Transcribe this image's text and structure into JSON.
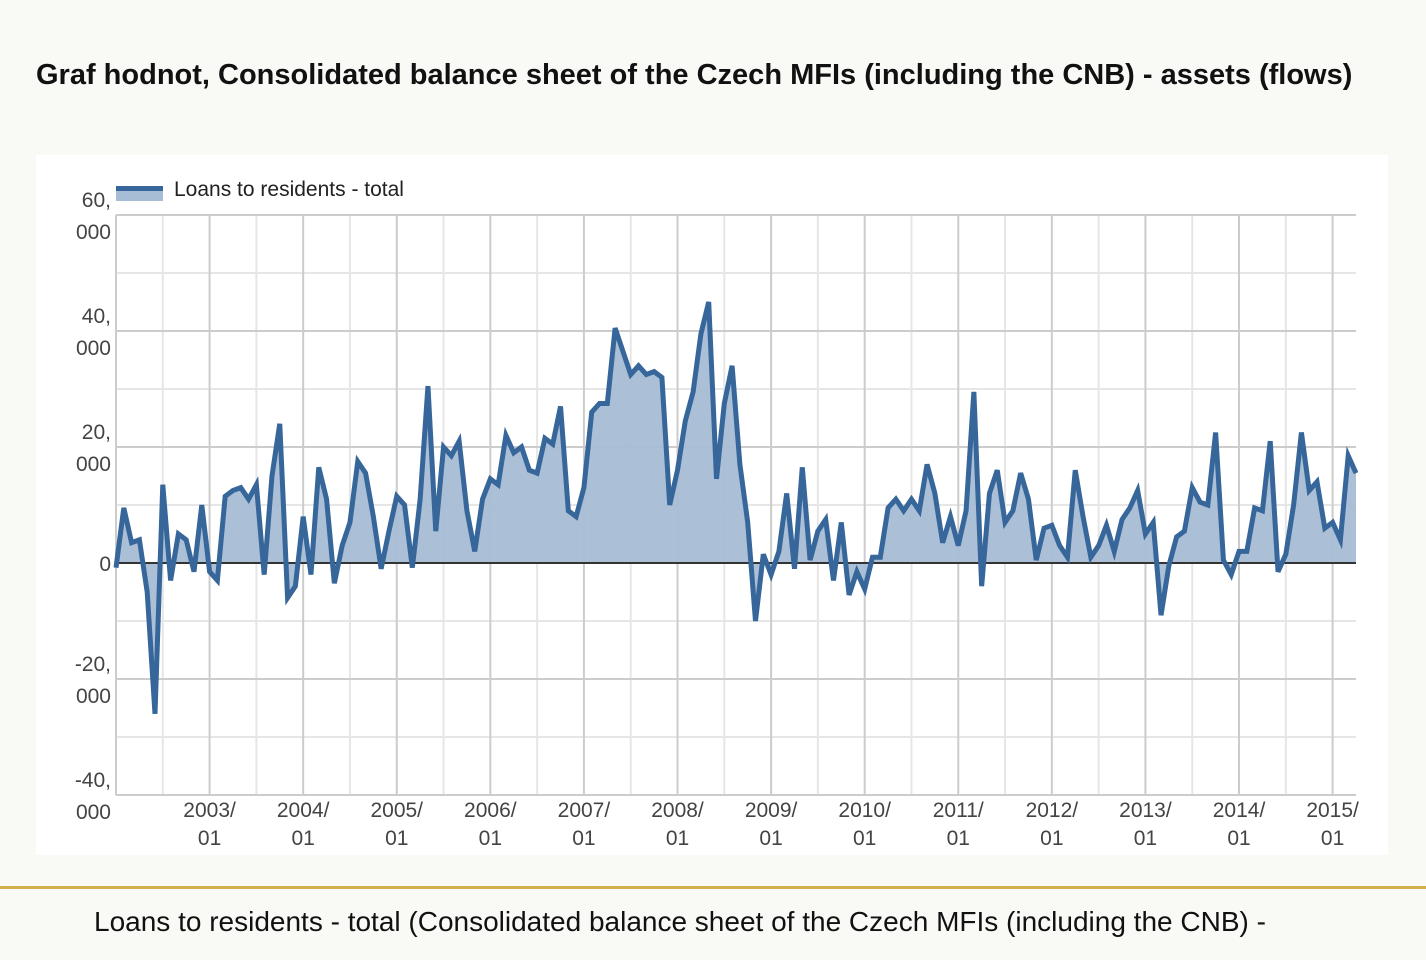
{
  "page": {
    "title": "Graf hodnot, Consolidated balance sheet of the Czech MFIs (including the CNB) - assets (flows)",
    "caption": "Loans to residents - total (Consolidated balance sheet of the Czech MFIs (including the CNB) -"
  },
  "colors": {
    "line": "#36669a",
    "fill": "#a7bcd5",
    "accent": "#d2b04c"
  },
  "chart_data": {
    "type": "area",
    "title": "Graf hodnot, Consolidated balance sheet of the Czech MFIs (including the CNB) - assets (flows)",
    "xlabel": "",
    "ylabel": "",
    "ylim": [
      -40000,
      60000
    ],
    "grid": true,
    "legend_position": "top-left",
    "y_ticks": [
      {
        "value": 60000,
        "line1": "60,",
        "line2": "000"
      },
      {
        "value": 40000,
        "line1": "40,",
        "line2": "000"
      },
      {
        "value": 20000,
        "line1": "20,",
        "line2": "000"
      },
      {
        "value": 0,
        "line1": "0",
        "line2": ""
      },
      {
        "value": -20000,
        "line1": "-20,",
        "line2": "000"
      },
      {
        "value": -40000,
        "line1": "-40,",
        "line2": "000"
      }
    ],
    "x_ticks": [
      {
        "year": "2003/",
        "month": "01"
      },
      {
        "year": "2004/",
        "month": "01"
      },
      {
        "year": "2005/",
        "month": "01"
      },
      {
        "year": "2006/",
        "month": "01"
      },
      {
        "year": "2007/",
        "month": "01"
      },
      {
        "year": "2008/",
        "month": "01"
      },
      {
        "year": "2009/",
        "month": "01"
      },
      {
        "year": "2010/",
        "month": "01"
      },
      {
        "year": "2011/",
        "month": "01"
      },
      {
        "year": "2012/",
        "month": "01"
      },
      {
        "year": "2013/",
        "month": "01"
      },
      {
        "year": "2014/",
        "month": "01"
      },
      {
        "year": "2015/",
        "month": "01"
      }
    ],
    "start_month": "2002/01",
    "series": [
      {
        "name": "Loans to residents - total",
        "values": [
          -800,
          9500,
          3500,
          4000,
          -5000,
          -26000,
          13500,
          -3000,
          5000,
          4000,
          -1500,
          10000,
          -1500,
          -3000,
          11500,
          12500,
          13000,
          11000,
          13500,
          -2000,
          15000,
          24000,
          -6000,
          -4000,
          8000,
          -2000,
          16500,
          11000,
          -3500,
          3000,
          7000,
          17500,
          15500,
          8000,
          -1000,
          5500,
          11500,
          10000,
          -800,
          11000,
          30500,
          5500,
          20000,
          18500,
          21000,
          9000,
          2000,
          11000,
          14500,
          13500,
          22000,
          19000,
          20000,
          16000,
          15500,
          21500,
          20500,
          27000,
          9000,
          8000,
          13000,
          26000,
          27500,
          27500,
          40500,
          36500,
          32500,
          34000,
          32500,
          33000,
          32000,
          10000,
          16000,
          24500,
          29500,
          39500,
          45000,
          14500,
          27500,
          34000,
          17000,
          7000,
          -10000,
          1500,
          -2000,
          2000,
          12000,
          -1000,
          16500,
          500,
          5500,
          7500,
          -3000,
          7000,
          -5500,
          -1500,
          -4500,
          1000,
          1000,
          9500,
          11000,
          9000,
          11000,
          9000,
          17000,
          12000,
          3500,
          8000,
          3000,
          9000,
          29500,
          -4000,
          12000,
          16000,
          7000,
          9000,
          15500,
          11000,
          500,
          6000,
          6500,
          3000,
          1000,
          16000,
          8000,
          1000,
          3000,
          6500,
          2000,
          7500,
          9500,
          12500,
          5000,
          7000,
          -9000,
          -500,
          4500,
          5500,
          13000,
          10500,
          10000,
          22500,
          500,
          -2000,
          2000,
          2000,
          9500,
          9000,
          21000,
          -1500,
          1500,
          10000,
          22500,
          12500,
          14000,
          6000,
          7000,
          4000,
          18500,
          15500
        ]
      }
    ]
  }
}
